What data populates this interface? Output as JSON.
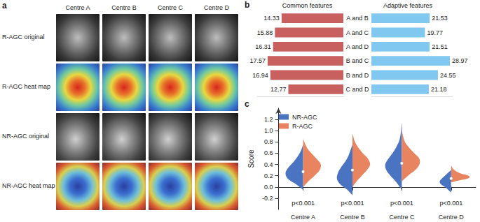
{
  "panel_a": {
    "label": "a",
    "columns": [
      "Centre A",
      "Centre B",
      "Centre C",
      "Centre D"
    ],
    "rows": [
      "R-AGC original",
      "R-AGC heat map",
      "NR-AGC original",
      "NR-AGC heat map"
    ]
  },
  "chart_data": [
    {
      "type": "bar",
      "panel_label": "b",
      "orientation": "horizontal",
      "categories": [
        "A and B",
        "A and C",
        "A and D",
        "B and C",
        "B and D",
        "C and D"
      ],
      "data_labels": true,
      "tick_labels": "y",
      "grid": false,
      "series": [
        {
          "name": "Common features",
          "color": "#c8605f",
          "xlim": [
            0,
            20
          ],
          "values": [
            14.33,
            15.88,
            16.31,
            17.57,
            16.94,
            12.77
          ]
        },
        {
          "name": "Adaptive features",
          "color": "#80c8ef",
          "xlim": [
            0,
            30
          ],
          "values": [
            21.53,
            19.77,
            21.51,
            28.97,
            24.55,
            21.18
          ]
        }
      ]
    },
    {
      "type": "violin",
      "panel_label": "c",
      "y_label": "Score",
      "categories": [
        "Centre A",
        "Centre B",
        "Centre C",
        "Centre D"
      ],
      "ylim": [
        -0.4,
        1.4
      ],
      "yticks": [
        -0.2,
        {
          "value": 0,
          "label": "0.0"
        },
        0.2,
        0.4,
        0.6,
        0.8,
        {
          "value": 1,
          "label": "1.0"
        },
        1.2
      ],
      "grid": false,
      "legend": "upper left",
      "annotations": [
        "p<0.001",
        "p<0.001",
        "p<0.001",
        "p<0.001"
      ],
      "median": [
        0.27,
        0.3,
        0.42,
        0.15
      ],
      "series": [
        {
          "name": "NR-AGC",
          "color": "#4a74c2",
          "violins": [
            {
              "y": [
                -0.05,
                0.05,
                0.15,
                0.25,
                0.35,
                0.45,
                0.55,
                0.65,
                0.75
              ],
              "density": [
                0,
                0.35,
                0.75,
                0.85,
                0.7,
                0.45,
                0.25,
                0.1,
                0
              ]
            },
            {
              "y": [
                -0.15,
                -0.05,
                0.05,
                0.15,
                0.25,
                0.35,
                0.45,
                0.55,
                0.75
              ],
              "density": [
                0,
                0.25,
                0.6,
                0.75,
                0.7,
                0.55,
                0.35,
                0.2,
                0
              ]
            },
            {
              "y": [
                -0.05,
                0.1,
                0.2,
                0.3,
                0.4,
                0.5,
                0.6,
                0.7,
                0.85,
                1.15
              ],
              "density": [
                0,
                0.3,
                0.55,
                0.75,
                0.8,
                0.65,
                0.45,
                0.28,
                0.1,
                0
              ]
            },
            {
              "y": [
                -0.1,
                0,
                0.05,
                0.1,
                0.15,
                0.2,
                0.3
              ],
              "density": [
                0,
                0.3,
                0.5,
                0.55,
                0.45,
                0.3,
                0
              ]
            }
          ]
        },
        {
          "name": "R-AGC",
          "color": "#e8845f",
          "violins": [
            {
              "y": [
                0,
                0.1,
                0.2,
                0.3,
                0.4,
                0.5,
                0.6,
                0.7,
                0.85
              ],
              "density": [
                0,
                0.25,
                0.55,
                0.8,
                0.85,
                0.65,
                0.4,
                0.18,
                0
              ]
            },
            {
              "y": [
                0,
                0.1,
                0.2,
                0.3,
                0.4,
                0.5,
                0.6,
                0.7,
                0.8,
                0.95
              ],
              "density": [
                0,
                0.2,
                0.45,
                0.7,
                0.85,
                0.75,
                0.5,
                0.28,
                0.12,
                0
              ]
            },
            {
              "y": [
                0.1,
                0.2,
                0.3,
                0.4,
                0.5,
                0.6,
                0.7,
                0.8,
                1.0
              ],
              "density": [
                0,
                0.3,
                0.65,
                0.85,
                0.85,
                0.6,
                0.35,
                0.15,
                0
              ]
            },
            {
              "y": [
                0.08,
                0.12,
                0.15,
                0.18,
                0.21,
                0.25,
                0.3,
                0.38
              ],
              "density": [
                0,
                0.45,
                0.8,
                0.9,
                0.75,
                0.4,
                0.15,
                0
              ]
            }
          ]
        }
      ]
    }
  ]
}
